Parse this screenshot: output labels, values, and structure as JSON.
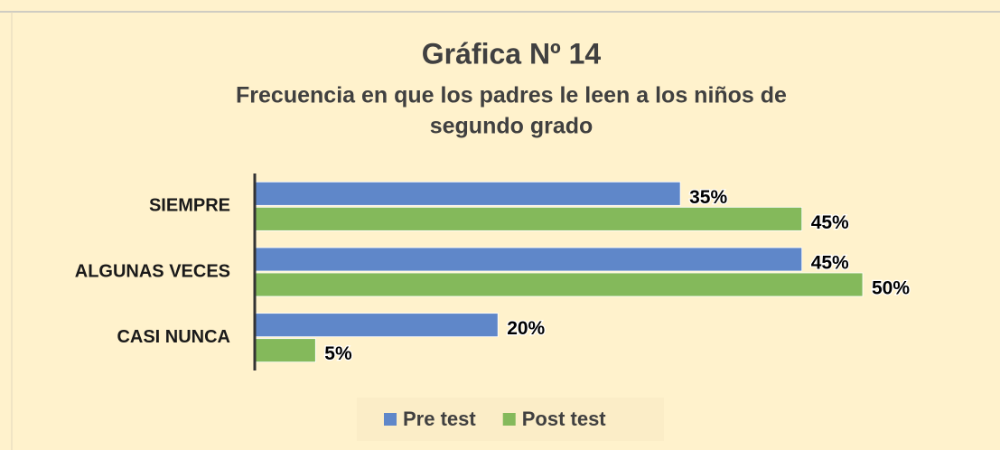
{
  "chart_data": {
    "type": "hbar",
    "title": "Gráfica Nº 14",
    "subtitle": [
      "Frecuencia en que los padres le leen a los niños de",
      "segundo grado"
    ],
    "categories": [
      "SIEMPRE",
      "ALGUNAS VECES",
      "CASI NUNCA"
    ],
    "series": [
      {
        "name": "Pre test",
        "color": "#5f87c9",
        "values": [
          35,
          45,
          20
        ],
        "value_labels": [
          "35%",
          "45%",
          "20%"
        ]
      },
      {
        "name": "Post test",
        "color": "#84b95b",
        "values": [
          45,
          50,
          5
        ],
        "value_labels": [
          "45%",
          "50%",
          "5%"
        ]
      }
    ],
    "xlim": [
      0,
      50
    ],
    "legend": "bottom"
  }
}
